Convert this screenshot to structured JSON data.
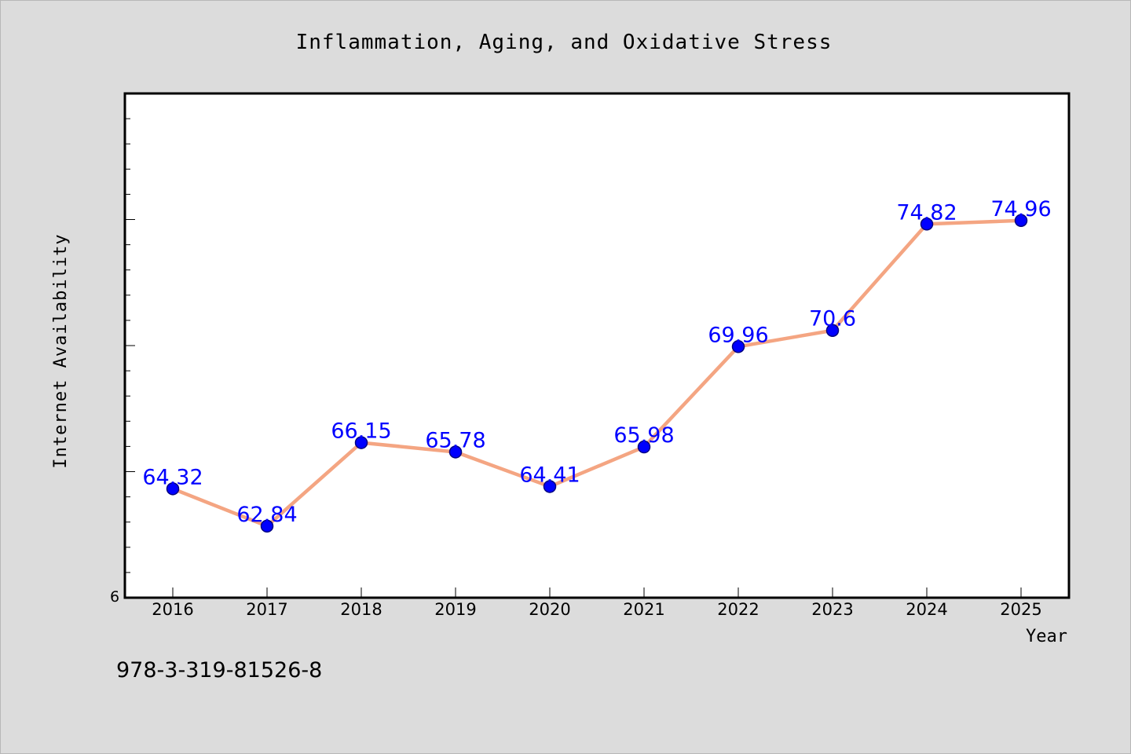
{
  "chart_data": {
    "type": "line",
    "title": "Inflammation, Aging, and Oxidative Stress",
    "xlabel": "Year",
    "ylabel": "Internet Availability",
    "categories": [
      "2016",
      "2017",
      "2018",
      "2019",
      "2020",
      "2021",
      "2022",
      "2023",
      "2024",
      "2025"
    ],
    "series": [
      {
        "values": [
          64.32,
          62.84,
          66.15,
          65.78,
          64.41,
          65.98,
          69.96,
          70.6,
          74.82,
          74.96
        ],
        "data_labels": [
          "64.32",
          "62.84",
          "66.15",
          "65.78",
          "64.41",
          "65.98",
          "69.96",
          "70.6",
          "74.82",
          "74.96"
        ]
      }
    ],
    "ylim": [
      60,
      80
    ],
    "y_tick_labels": [
      "6"
    ],
    "grid": false,
    "legend": "none",
    "colors": {
      "line": "#f4a582",
      "marker": "#0000ff",
      "marker_edge": "#000080",
      "data_label": "#0000ff",
      "background": "#dcdcdc",
      "plot_area": "#ffffff"
    }
  },
  "footer": {
    "isbn": "978-3-319-81526-8"
  }
}
